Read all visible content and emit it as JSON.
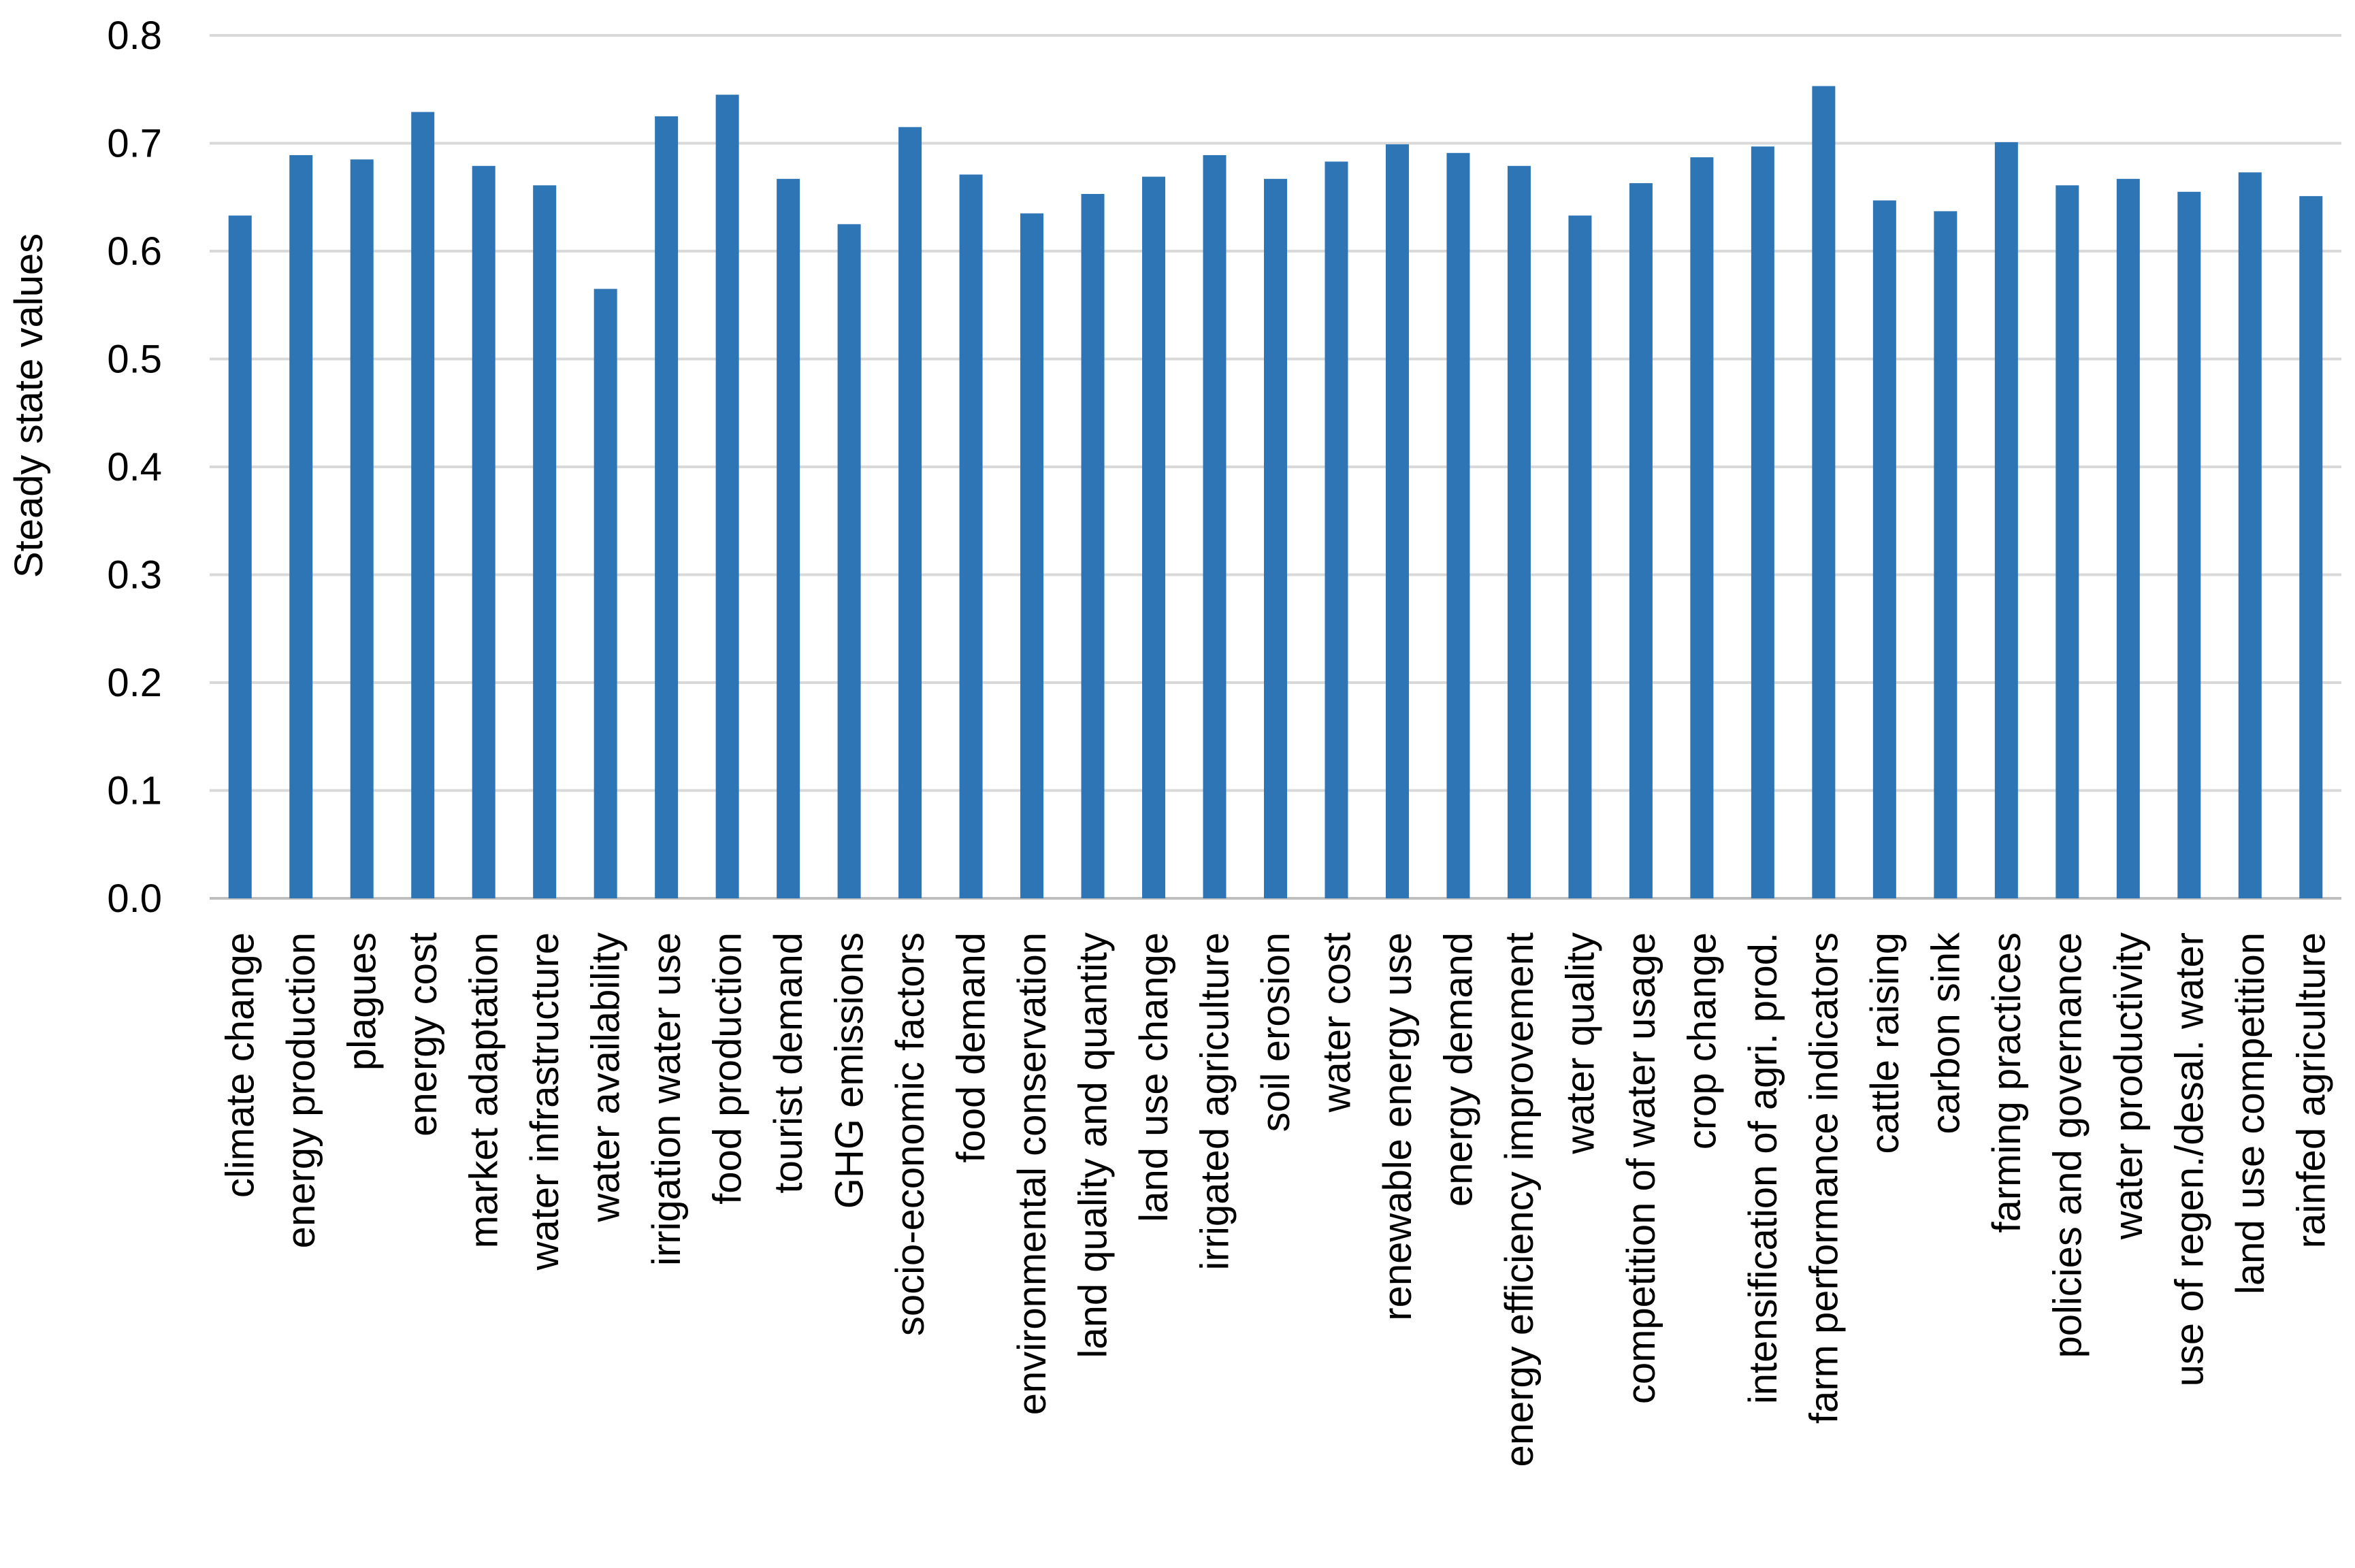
{
  "chart_data": {
    "type": "bar",
    "ylabel": "Steady state values",
    "xlabel": "",
    "ylim": [
      0,
      0.8
    ],
    "yticks": [
      "0.0",
      "0.1",
      "0.2",
      "0.3",
      "0.4",
      "0.5",
      "0.6",
      "0.7",
      "0.8"
    ],
    "grid": true,
    "bar_color": "#2e75b6",
    "categories": [
      "climate change",
      "energy production",
      "plagues",
      "energy cost",
      "market adaptation",
      "water infrastructure",
      "water availability",
      "irrigation water use",
      "food production",
      "tourist demand",
      "GHG emissions",
      "socio-economic factors",
      "food demand",
      "environmental conservation",
      "land quality and quantity",
      "land use change",
      "irrigated agriculture",
      "soil erosion",
      "water cost",
      "renewable energy use",
      "energy demand",
      "energy efficiency improvement",
      "water quality",
      "competition of water usage",
      "crop change",
      "intensification of agri. prod.",
      "farm performance indicators",
      "cattle raising",
      "carbon sink",
      "farming practices",
      "policies and governance",
      "water productivity",
      "use of regen./desal. water",
      "land use competition",
      "rainfed agriculture"
    ],
    "values": [
      0.633,
      0.689,
      0.685,
      0.729,
      0.679,
      0.661,
      0.565,
      0.725,
      0.745,
      0.667,
      0.625,
      0.715,
      0.671,
      0.635,
      0.653,
      0.669,
      0.689,
      0.667,
      0.683,
      0.699,
      0.691,
      0.679,
      0.633,
      0.663,
      0.687,
      0.697,
      0.753,
      0.647,
      0.637,
      0.701,
      0.661,
      0.667,
      0.655,
      0.673,
      0.651
    ]
  }
}
